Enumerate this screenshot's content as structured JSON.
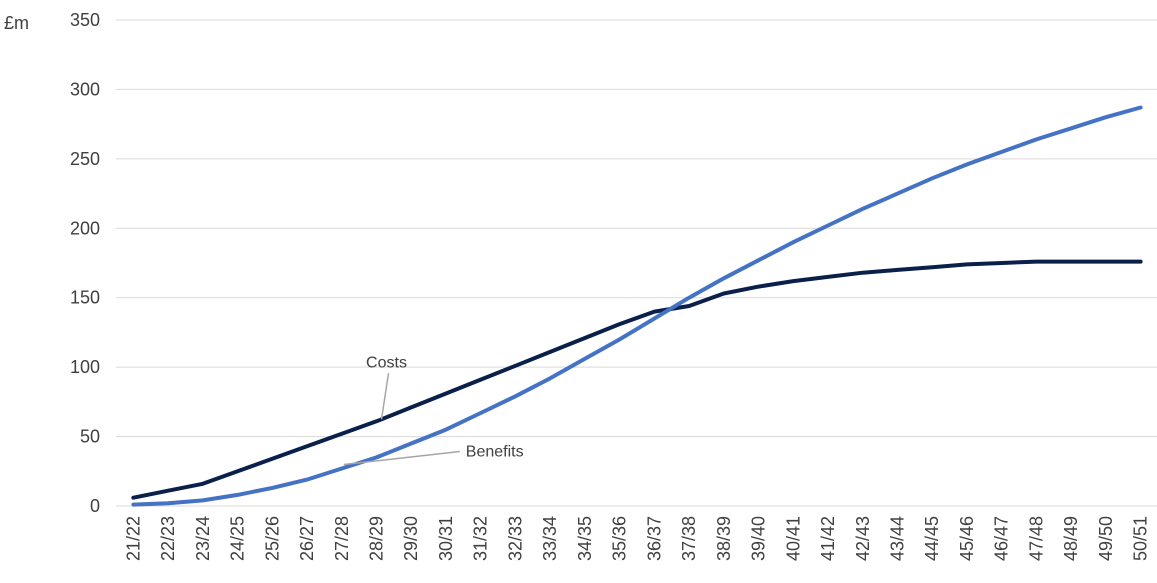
{
  "chart_data": {
    "type": "line",
    "unit_label": "£m",
    "ylim": [
      0,
      350
    ],
    "yticks": [
      0,
      50,
      100,
      150,
      200,
      250,
      300,
      350
    ],
    "grid": true,
    "legend": "none",
    "categories": [
      "21/22",
      "22/23",
      "23/24",
      "24/25",
      "25/26",
      "26/27",
      "27/28",
      "28/29",
      "29/30",
      "30/31",
      "31/32",
      "32/33",
      "33/34",
      "34/35",
      "35/36",
      "36/37",
      "37/38",
      "38/39",
      "39/40",
      "40/41",
      "41/42",
      "42/43",
      "43/44",
      "44/45",
      "45/46",
      "46/47",
      "47/48",
      "48/49",
      "49/50",
      "50/51"
    ],
    "series": [
      {
        "name": "Costs",
        "color": "#0b1f4b",
        "values": [
          6,
          11,
          16,
          25,
          34,
          43,
          52,
          61,
          71,
          81,
          91,
          101,
          111,
          121,
          131,
          140,
          144,
          153,
          158,
          162,
          165,
          168,
          170,
          172,
          174,
          175,
          176,
          176,
          176,
          176
        ]
      },
      {
        "name": "Benefits",
        "color": "#4472c4",
        "values": [
          1,
          2,
          4,
          8,
          13,
          19,
          27,
          35,
          45,
          55,
          67,
          79,
          92,
          106,
          120,
          135,
          150,
          164,
          177,
          190,
          202,
          214,
          225,
          236,
          246,
          255,
          264,
          272,
          280,
          287
        ]
      }
    ],
    "annotations": [
      {
        "label": "Costs",
        "series": 0,
        "category_index": 7
      },
      {
        "label": "Benefits",
        "series": 1,
        "category_index": 6
      }
    ]
  }
}
